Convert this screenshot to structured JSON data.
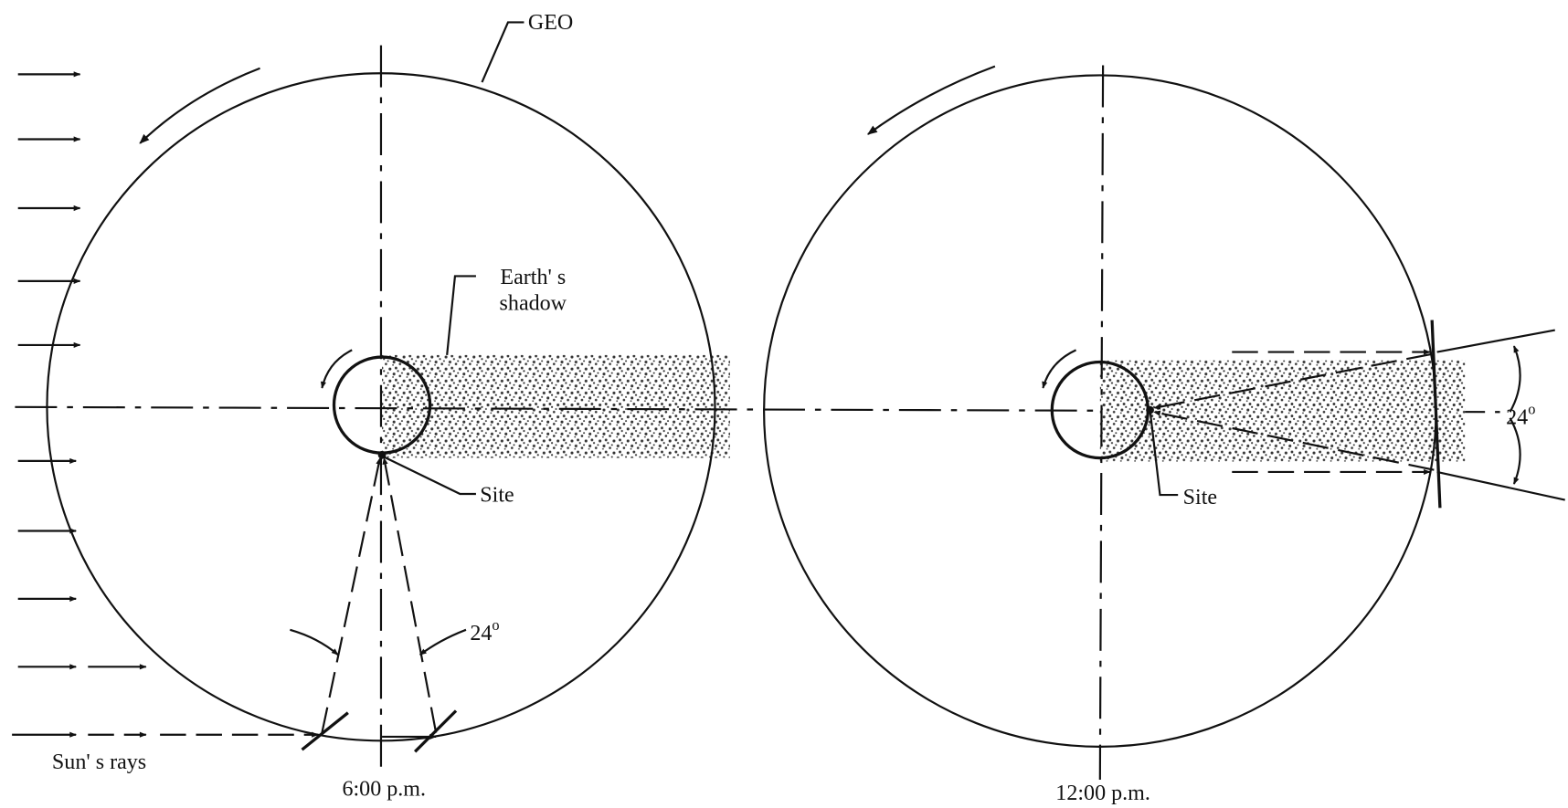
{
  "labels": {
    "geo": "GEO",
    "shadow": [
      "Earth' s",
      "shadow"
    ],
    "site_left": "Site",
    "site_right": "Site",
    "angle_left": {
      "number": "24",
      "sup": "o"
    },
    "angle_right": {
      "number": "24",
      "sup": "o"
    },
    "sun_rays": "Sun' s rays",
    "time_left": "6:00 p.m.",
    "time_right": "12:00 p.m."
  }
}
